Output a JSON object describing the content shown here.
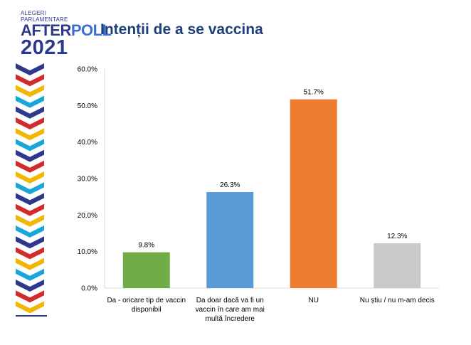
{
  "logo": {
    "line1": "ALEGERI",
    "line2": "PARLAMENTARE",
    "after": "AFTER",
    "poll": "POLL",
    "year": "2021"
  },
  "colors": {
    "title": "#1f3f7a",
    "axis": "#d9d9d9",
    "deco": [
      "#2d3a8c",
      "#d12b2b",
      "#f2b705",
      "#19a6d9"
    ]
  },
  "chart_data": {
    "type": "bar",
    "title": "Intenții de a se vaccina",
    "xlabel": "",
    "ylabel": "",
    "ylim": [
      0,
      60
    ],
    "grid": false,
    "legend": "none",
    "y_ticks": [
      "0.0%",
      "10.0%",
      "20.0%",
      "30.0%",
      "40.0%",
      "50.0%",
      "60.0%"
    ],
    "categories": [
      [
        "Da - oricare tip de vaccin",
        "disponibil"
      ],
      [
        "Da doar  dacă va fi un",
        "vaccin în care am mai",
        "multă încredere"
      ],
      [
        "NU"
      ],
      [
        "Nu știu / nu m-am decis"
      ]
    ],
    "values": [
      9.8,
      26.3,
      51.7,
      12.3
    ],
    "data_labels": [
      "9.8%",
      "26.3%",
      "51.7%",
      "12.3%"
    ],
    "bar_colors": [
      "#70ad47",
      "#5b9bd5",
      "#ed7d31",
      "#c9c9c9"
    ]
  }
}
